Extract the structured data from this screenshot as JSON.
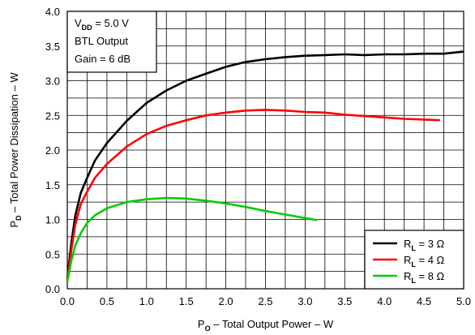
{
  "chart_data": {
    "type": "line",
    "xlabel_main": "P",
    "xlabel_sub": "O",
    "xlabel_rest": " – Total Output Power – W",
    "ylabel_main": "P",
    "ylabel_sub": "D",
    "ylabel_rest": " – Total Power Dissipation – W",
    "xlim": [
      0,
      5.0
    ],
    "ylim": [
      0,
      4.0
    ],
    "x_ticks": [
      "0.0",
      "0.5",
      "1.0",
      "1.5",
      "2.0",
      "2.5",
      "3.0",
      "3.5",
      "4.0",
      "4.5",
      "5.0"
    ],
    "y_ticks": [
      "0.0",
      "0.5",
      "1.0",
      "1.5",
      "2.0",
      "2.5",
      "3.0",
      "3.5",
      "4.0"
    ],
    "grid": true,
    "legend_position": "bottom-right",
    "annotation": {
      "line1_main": "V",
      "line1_sub": "DD",
      "line1_rest": " = 5.0 V",
      "line2": "BTL Output",
      "line3": "Gain = 6 dB"
    },
    "series": [
      {
        "name_main": "R",
        "name_sub": "L",
        "name_rest": " = 3 Ω",
        "color": "#000000",
        "points": [
          [
            0.0,
            0.15
          ],
          [
            0.05,
            0.65
          ],
          [
            0.1,
            1.05
          ],
          [
            0.17,
            1.38
          ],
          [
            0.25,
            1.6
          ],
          [
            0.35,
            1.85
          ],
          [
            0.5,
            2.1
          ],
          [
            0.75,
            2.42
          ],
          [
            1.0,
            2.68
          ],
          [
            1.25,
            2.86
          ],
          [
            1.5,
            3.0
          ],
          [
            1.75,
            3.1
          ],
          [
            2.0,
            3.2
          ],
          [
            2.25,
            3.27
          ],
          [
            2.5,
            3.31
          ],
          [
            2.75,
            3.34
          ],
          [
            3.0,
            3.36
          ],
          [
            3.25,
            3.37
          ],
          [
            3.5,
            3.38
          ],
          [
            3.75,
            3.37
          ],
          [
            4.0,
            3.38
          ],
          [
            4.25,
            3.38
          ],
          [
            4.5,
            3.39
          ],
          [
            4.75,
            3.39
          ],
          [
            5.0,
            3.42
          ]
        ]
      },
      {
        "name_main": "R",
        "name_sub": "L",
        "name_rest": " = 4 Ω",
        "color": "#ff0000",
        "points": [
          [
            0.0,
            0.12
          ],
          [
            0.05,
            0.55
          ],
          [
            0.1,
            0.92
          ],
          [
            0.17,
            1.22
          ],
          [
            0.25,
            1.4
          ],
          [
            0.35,
            1.6
          ],
          [
            0.5,
            1.8
          ],
          [
            0.75,
            2.05
          ],
          [
            1.0,
            2.23
          ],
          [
            1.25,
            2.35
          ],
          [
            1.5,
            2.43
          ],
          [
            1.75,
            2.5
          ],
          [
            2.0,
            2.54
          ],
          [
            2.25,
            2.57
          ],
          [
            2.5,
            2.58
          ],
          [
            2.75,
            2.57
          ],
          [
            3.0,
            2.55
          ],
          [
            3.25,
            2.54
          ],
          [
            3.5,
            2.51
          ],
          [
            3.75,
            2.49
          ],
          [
            4.0,
            2.47
          ],
          [
            4.25,
            2.45
          ],
          [
            4.5,
            2.44
          ],
          [
            4.7,
            2.43
          ]
        ]
      },
      {
        "name_main": "R",
        "name_sub": "L",
        "name_rest": " = 8 Ω",
        "color": "#00cc00",
        "points": [
          [
            0.0,
            0.1
          ],
          [
            0.05,
            0.4
          ],
          [
            0.1,
            0.62
          ],
          [
            0.17,
            0.8
          ],
          [
            0.25,
            0.95
          ],
          [
            0.35,
            1.06
          ],
          [
            0.5,
            1.16
          ],
          [
            0.75,
            1.25
          ],
          [
            1.0,
            1.29
          ],
          [
            1.25,
            1.31
          ],
          [
            1.5,
            1.3
          ],
          [
            1.75,
            1.27
          ],
          [
            2.0,
            1.23
          ],
          [
            2.25,
            1.18
          ],
          [
            2.5,
            1.12
          ],
          [
            2.75,
            1.07
          ],
          [
            3.0,
            1.02
          ],
          [
            3.15,
            0.99
          ]
        ]
      }
    ]
  }
}
